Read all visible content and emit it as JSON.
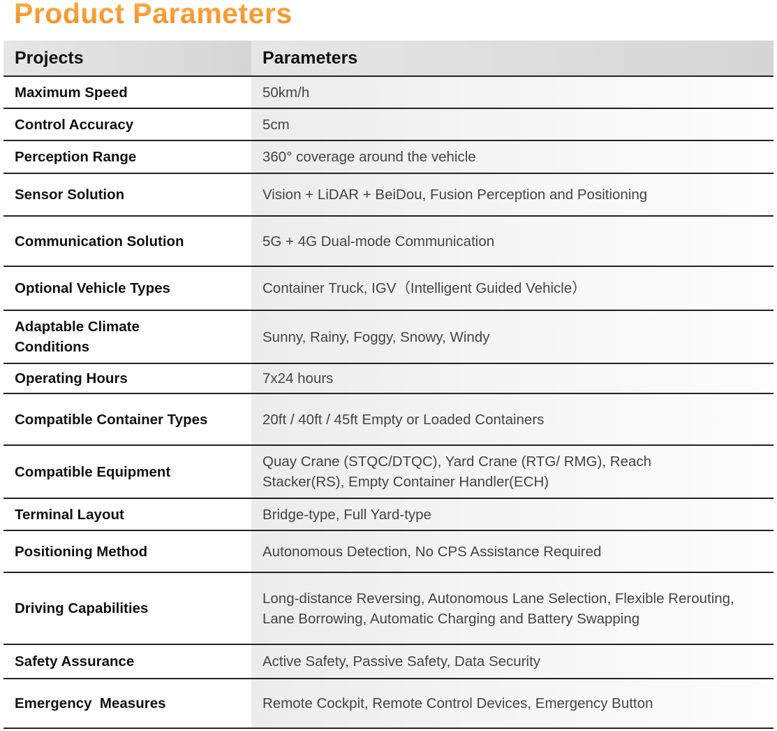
{
  "header": {
    "title": "Product Parameters"
  },
  "table": {
    "columns": [
      "Projects",
      "Parameters"
    ],
    "rows": [
      [
        "Maximum Speed",
        "50km/h"
      ],
      [
        "Control Accuracy",
        "5cm"
      ],
      [
        "Perception Range",
        "360° coverage around the vehicle"
      ],
      [
        "Sensor Solution",
        "Vision + LiDAR + BeiDou, Fusion Perception and Positioning"
      ],
      [
        "Communication Solution",
        "5G + 4G Dual-mode Communication"
      ],
      [
        "Optional Vehicle Types",
        "Container Truck, IGV（Intelligent Guided Vehicle）"
      ],
      [
        "Adaptable Climate Conditions",
        "Sunny, Rainy, Foggy, Snowy, Windy"
      ],
      [
        "Operating Hours",
        "7x24 hours"
      ],
      [
        "Compatible Container Types",
        "20ft / 40ft / 45ft Empty or Loaded Containers"
      ],
      [
        "Compatible Equipment",
        "Quay Crane (STQC/DTQC), Yard Crane (RTG/ RMG), Reach Stacker(RS), Empty Container Handler(ECH)"
      ],
      [
        "Terminal Layout",
        "Bridge-type, Full Yard-type"
      ],
      [
        "Positioning Method",
        "Autonomous Detection, No CPS Assistance Required"
      ],
      [
        "Driving Capabilities",
        "Long-distance Reversing, Autonomous Lane Selection, Flexible Rerouting, Lane Borrowing, Automatic Charging and Battery Swapping"
      ],
      [
        "Safety Assurance",
        "Active Safety, Passive Safety, Data Security"
      ],
      [
        "Emergency  Measures",
        "Remote Cockpit, Remote Control Devices, Emergency Button"
      ]
    ]
  }
}
